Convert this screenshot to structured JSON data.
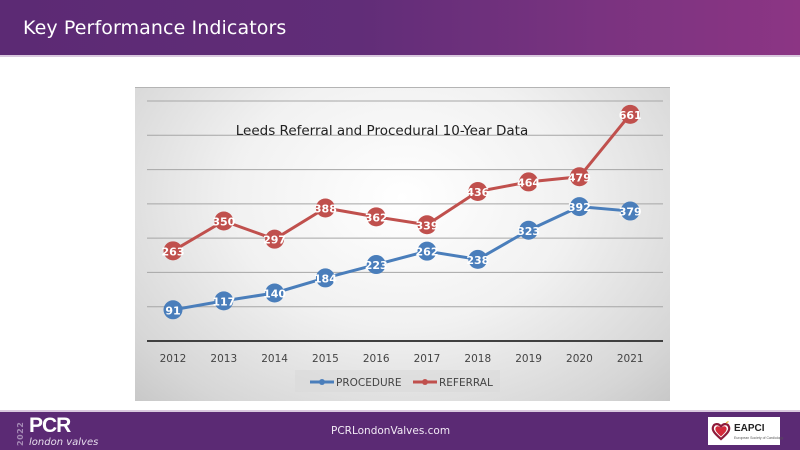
{
  "header": {
    "title": "Key Performance Indicators"
  },
  "footer": {
    "url": "PCRLondonValves.com",
    "pcr_logo": {
      "year": "2022",
      "name": "PCR",
      "subtitle": "london valves"
    },
    "eapci_logo": {
      "name": "EAPCI",
      "subtitle": "European Society of Cardiology"
    }
  },
  "colors": {
    "header_purple": "#5c2a74",
    "header_magenta": "#8c3584",
    "procedure": "#4a7ebb",
    "referral": "#c0504d"
  },
  "chart_data": {
    "type": "line",
    "title": "Leeds Referral and Procedural 10-Year Data",
    "xlabel": "",
    "ylabel": "",
    "categories": [
      "2012",
      "2013",
      "2014",
      "2015",
      "2016",
      "2017",
      "2018",
      "2019",
      "2020",
      "2021"
    ],
    "series": [
      {
        "name": "PROCEDURE",
        "color": "#4a7ebb",
        "values": [
          91,
          117,
          140,
          184,
          223,
          262,
          238,
          323,
          392,
          379
        ]
      },
      {
        "name": "REFERRAL",
        "color": "#c0504d",
        "values": [
          263,
          350,
          297,
          388,
          362,
          339,
          436,
          464,
          479,
          661
        ]
      }
    ],
    "ylim": [
      0,
      700
    ],
    "ytick_step": 100,
    "yaxis_labels_visible": false,
    "grid": true,
    "data_labels": true,
    "legend_position": "bottom"
  }
}
